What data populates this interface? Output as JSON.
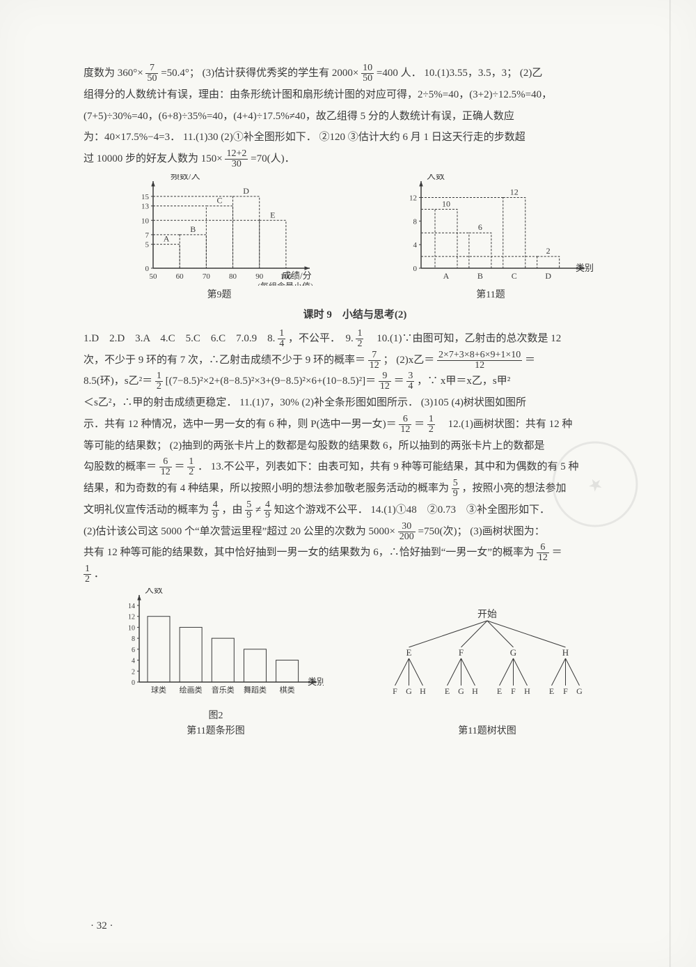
{
  "para1": {
    "l1a": "度数为 360°×",
    "f1n": "7",
    "f1d": "50",
    "l1b": "=50.4°；  (3)估计获得优秀奖的学生有 2000×",
    "f2n": "10",
    "f2d": "50",
    "l1c": "=400 人．  10.(1)3.55，3.5，3；  (2)乙",
    "l2": "组得分的人数统计有误，理由：由条形统计图和扇形统计图的对应可得，2÷5%=40，(3+2)÷12.5%=40，",
    "l3": "(7+5)÷30%=40，(6+8)÷35%=40，(4+4)÷17.5%≠40，故乙组得 5 分的人数统计有误，正确人数应",
    "l4": "为：40×17.5%−4=3．  11.(1)30  (2)①补全图形如下．  ②120  ③估计大约 6 月 1 日这天行走的步数超",
    "l5a": "过 10000 步的好友人数为 150×",
    "f3n": "12+2",
    "f3d": "30",
    "l5b": "=70(人)．"
  },
  "chart9": {
    "ylabel": "频数/人",
    "xlabel": "成绩/分",
    "xnote": "(每组含最小值)",
    "caption": "第9题",
    "xticks": [
      "50",
      "60",
      "70",
      "80",
      "90",
      "100"
    ],
    "yticks": [
      0,
      5,
      7,
      10,
      13,
      15
    ],
    "bars": [
      5,
      7,
      13,
      15,
      10
    ],
    "letters": [
      "A",
      "B",
      "C",
      "D",
      "E"
    ],
    "barColor": "none",
    "strokeColor": "#3a3a3a"
  },
  "chart11a": {
    "ylabel": "人数",
    "xlabel": "类别",
    "caption": "第11题",
    "xticks": [
      "A",
      "B",
      "C",
      "D"
    ],
    "yticks": [
      0,
      4,
      8,
      12
    ],
    "bars": [
      10,
      6,
      12,
      2
    ],
    "barLabels": [
      "10",
      "6",
      "12",
      "2"
    ],
    "strokeColor": "#3a3a3a"
  },
  "sectionTitle": "课时 9　小结与思考(2)",
  "para2": {
    "l1a": "1.D　2.D　3.A　4.C　5.C　6.C　7.0.9　8.",
    "f1n": "1",
    "f1d": "4",
    "l1b": "，不公平．　9.",
    "f2n": "1",
    "f2d": "2",
    "l1c": "　10.(1)∵由图可知，乙射击的总次数是 12",
    "l2a": "次，不少于 9 环的有 7 次，∴乙射击成绩不少于 9 环的概率＝",
    "f3n": "7",
    "f3d": "12",
    "l2b": "；  (2)x乙＝",
    "f4n": "2×7+3×8+6×9+1×10",
    "f4d": "12",
    "l2c": "＝",
    "l3a": "8.5(环)，s乙²＝",
    "f5n": "1",
    "f5d": "2",
    "l3b": "[(7−8.5)²×2+(8−8.5)²×3+(9−8.5)²×6+(10−8.5)²]＝",
    "f6n": "9",
    "f6d": "12",
    "l3c": "＝",
    "f7n": "3",
    "f7d": "4",
    "l3d": "，∵ x甲＝x乙，s甲²",
    "l4": "＜s乙²，∴甲的射击成绩更稳定．  11.(1)7，30%  (2)补全条形图如图所示．  (3)105  (4)树状图如图所",
    "l5a": "示．共有 12 种情况，选中一男一女的有 6 种，则 P(选中一男一女)＝",
    "f8n": "6",
    "f8d": "12",
    "l5b": "＝",
    "f9n": "1",
    "f9d": "2",
    "l5c": "　12.(1)画树状图：共有 12 种",
    "l6": "等可能的结果数；  (2)抽到的两张卡片上的数都是勾股数的结果数 6，所以抽到的两张卡片上的数都是",
    "l7a": "勾股数的概率＝",
    "f10n": "6",
    "f10d": "12",
    "l7b": "＝",
    "f11n": "1",
    "f11d": "2",
    "l7c": "．  13.不公平，列表如下：由表可知，共有 9 种等可能结果，其中和为偶数的有 5 种",
    "l8a": "结果，和为奇数的有 4 种结果，所以按照小明的想法参加敬老服务活动的概率为",
    "f12n": "5",
    "f12d": "9",
    "l8b": "，按照小亮的想法参加",
    "l9a": "文明礼仪宣传活动的概率为",
    "f13n": "4",
    "f13d": "9",
    "l9b": "，由",
    "f14n": "5",
    "f14d": "9",
    "l9c": "≠",
    "f15n": "4",
    "f15d": "9",
    "l9d": "知这个游戏不公平．  14.(1)①48　②0.73　③补全图形如下．",
    "l10a": "(2)估计该公司这 5000 个“单次营运里程”超过 20 公里的次数为 5000×",
    "f16n": "30",
    "f16d": "200",
    "l10b": "=750(次)；  (3)画树状图为：",
    "l11a": "共有 12 种等可能的结果数，其中恰好抽到一男一女的结果数为 6，∴恰好抽到“一男一女”的概率为",
    "f17n": "6",
    "f17d": "12",
    "l11b": "＝",
    "l12n": "1",
    "l12d": "2",
    "l12b": "．"
  },
  "chart11bar": {
    "ylabel": "人数",
    "xlabel": "类别",
    "note": "图2",
    "caption": "第11题条形图",
    "xticks": [
      "球类",
      "绘画类",
      "音乐类",
      "舞蹈类",
      "棋类"
    ],
    "yticks": [
      0,
      2,
      4,
      6,
      8,
      10,
      12,
      14
    ],
    "bars": [
      12,
      10,
      8,
      6,
      4
    ],
    "strokeColor": "#3a3a3a"
  },
  "tree": {
    "root": "开始",
    "level1": [
      "E",
      "F",
      "G",
      "H"
    ],
    "level2": [
      [
        "F",
        "G",
        "H"
      ],
      [
        "E",
        "G",
        "H"
      ],
      [
        "E",
        "F",
        "H"
      ],
      [
        "E",
        "F",
        "G"
      ]
    ],
    "caption": "第11题树状图",
    "strokeColor": "#3a3a3a"
  },
  "pageNumber": "· 32 ·"
}
